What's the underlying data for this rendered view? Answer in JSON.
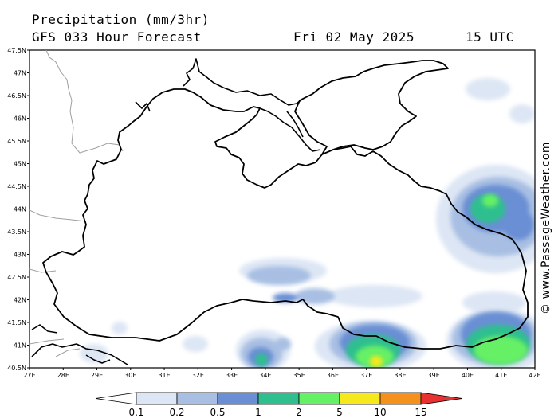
{
  "header": {
    "title": "Precipitation (mm/3hr)",
    "model": "GFS 033 Hour Forecast",
    "date": "Fri 02 May 2025",
    "time": "15 UTC"
  },
  "watermark": "© www.PassageWeather.com",
  "map": {
    "lat_labels": [
      "47.5N",
      "47N",
      "46.5N",
      "46N",
      "45.5N",
      "45N",
      "44.5N",
      "44N",
      "43.5N",
      "43N",
      "42.5N",
      "42N",
      "41.5N",
      "41N",
      "40.5N"
    ],
    "lon_labels": [
      "27E",
      "28E",
      "29E",
      "30E",
      "31E",
      "32E",
      "33E",
      "34E",
      "35E",
      "36E",
      "37E",
      "38E",
      "39E",
      "40E",
      "41E",
      "42E"
    ],
    "lat_range": [
      40.5,
      47.5
    ],
    "lon_range": [
      27,
      42
    ]
  },
  "colorbar": {
    "labels": [
      "0.1",
      "0.2",
      "0.5",
      "1",
      "2",
      "5",
      "10",
      "15"
    ],
    "colors": [
      "#ffffff",
      "#dde6f4",
      "#a8bfe3",
      "#6a8fd4",
      "#2fbf8f",
      "#66f066",
      "#f5e81c",
      "#f5901c",
      "#e83232"
    ]
  }
}
